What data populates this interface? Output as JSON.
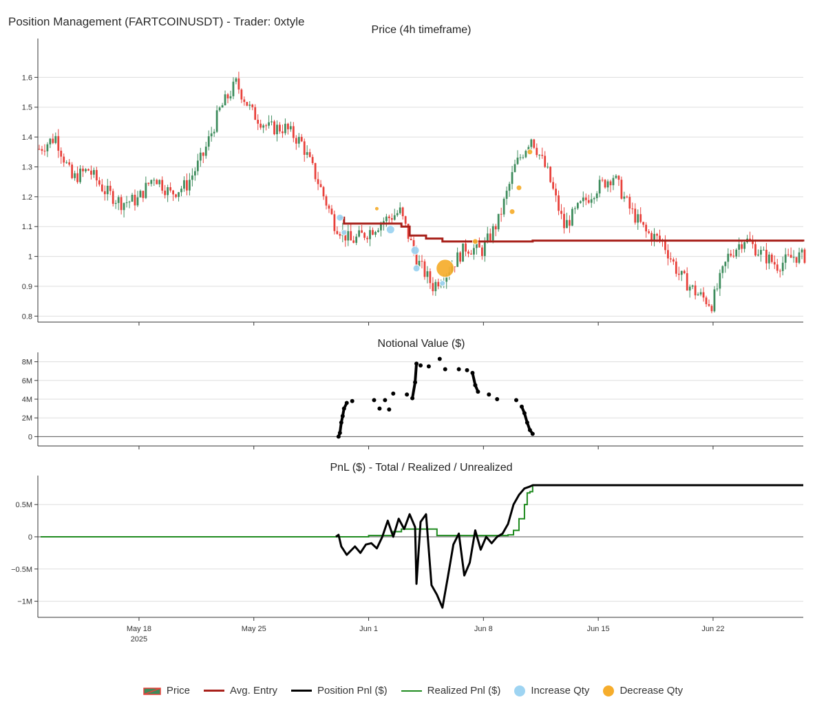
{
  "header": {
    "title": "Position Management (FARTCOINUSDT) - Trader: 0xtyle"
  },
  "colors": {
    "up_candle": "#3d8c5c",
    "down_candle": "#e8403a",
    "avg_entry": "#a8201a",
    "position_pnl": "#000000",
    "realized_pnl": "#1e8a1e",
    "increase_qty": "#9ed4f2",
    "decrease_qty": "#f6ad2c",
    "grid": "#dddddd",
    "axis": "#333333"
  },
  "chart_data": [
    {
      "type": "candlestick",
      "title": "Price (4h timeframe)",
      "ylim": [
        0.78,
        1.73
      ],
      "yticks": [
        0.8,
        0.9,
        1.0,
        1.1,
        1.2,
        1.3,
        1.4,
        1.5,
        1.6
      ],
      "ytick_labels": [
        "0.8",
        "0.9",
        "1",
        "1.1",
        "1.2",
        "1.3",
        "1.4",
        "1.5",
        "1.6"
      ],
      "x_range": [
        "2025-05-11 20:00",
        "2025-06-27 12:00"
      ],
      "price_path": [
        [
          "2025-05-12",
          1.36
        ],
        [
          "2025-05-13",
          1.4
        ],
        [
          "2025-05-14",
          1.26
        ],
        [
          "2025-05-15",
          1.29
        ],
        [
          "2025-05-16",
          1.22
        ],
        [
          "2025-05-17",
          1.18
        ],
        [
          "2025-05-18",
          1.19
        ],
        [
          "2025-05-19",
          1.27
        ],
        [
          "2025-05-20",
          1.21
        ],
        [
          "2025-05-21",
          1.24
        ],
        [
          "2025-05-22",
          1.34
        ],
        [
          "2025-05-23",
          1.49
        ],
        [
          "2025-05-24",
          1.58
        ],
        [
          "2025-05-25",
          1.48
        ],
        [
          "2025-05-26",
          1.43
        ],
        [
          "2025-05-27",
          1.43
        ],
        [
          "2025-05-28",
          1.38
        ],
        [
          "2025-05-29",
          1.25
        ],
        [
          "2025-05-30",
          1.11
        ],
        [
          "2025-05-31",
          1.05
        ],
        [
          "2025-06-01",
          1.08
        ],
        [
          "2025-06-02",
          1.12
        ],
        [
          "2025-06-03",
          1.15
        ],
        [
          "2025-06-04",
          0.99
        ],
        [
          "2025-06-05",
          0.9
        ],
        [
          "2025-06-06",
          0.96
        ],
        [
          "2025-06-07",
          1.03
        ],
        [
          "2025-06-08",
          1.02
        ],
        [
          "2025-06-09",
          1.12
        ],
        [
          "2025-06-10",
          1.3
        ],
        [
          "2025-06-11",
          1.4
        ],
        [
          "2025-06-12",
          1.28
        ],
        [
          "2025-06-13",
          1.1
        ],
        [
          "2025-06-14",
          1.17
        ],
        [
          "2025-06-15",
          1.23
        ],
        [
          "2025-06-16",
          1.27
        ],
        [
          "2025-06-17",
          1.16
        ],
        [
          "2025-06-18",
          1.08
        ],
        [
          "2025-06-19",
          1.05
        ],
        [
          "2025-06-20",
          0.94
        ],
        [
          "2025-06-21",
          0.88
        ],
        [
          "2025-06-22",
          0.84
        ],
        [
          "2025-06-23",
          1.0
        ],
        [
          "2025-06-24",
          1.06
        ],
        [
          "2025-06-25",
          1.01
        ],
        [
          "2025-06-26",
          0.97
        ],
        [
          "2025-06-27",
          1.0
        ]
      ],
      "avg_entry": [
        [
          "2025-05-30 06:00",
          1.13
        ],
        [
          "2025-05-30 12:00",
          1.11
        ],
        [
          "2025-06-03 00:00",
          1.1
        ],
        [
          "2025-06-03 12:00",
          1.07
        ],
        [
          "2025-06-04 12:00",
          1.06
        ],
        [
          "2025-06-05 12:00",
          1.05
        ],
        [
          "2025-06-11 00:00",
          1.053
        ],
        [
          "2025-06-27 12:00",
          1.05
        ]
      ],
      "increase_qty": [
        [
          "2025-05-30 06:00",
          1.13,
          4
        ],
        [
          "2025-05-30 12:00",
          1.08,
          3
        ],
        [
          "2025-06-02 08:00",
          1.09,
          5
        ],
        [
          "2025-06-03 20:00",
          1.02,
          5
        ],
        [
          "2025-06-03 22:00",
          0.96,
          4
        ],
        [
          "2025-06-05 12:00",
          0.91,
          3
        ]
      ],
      "decrease_qty": [
        [
          "2025-06-01 12:00",
          1.16,
          2
        ],
        [
          "2025-06-05 16:00",
          0.96,
          12
        ],
        [
          "2025-06-07 12:00",
          1.05,
          3
        ],
        [
          "2025-06-09 18:00",
          1.15,
          3
        ],
        [
          "2025-06-10 04:00",
          1.23,
          3
        ],
        [
          "2025-06-10 20:00",
          1.35,
          3
        ]
      ]
    },
    {
      "type": "scatter",
      "title": "Notional Value ($)",
      "ylim": [
        -1000000,
        9000000
      ],
      "yticks": [
        0,
        2000000,
        4000000,
        6000000,
        8000000
      ],
      "ytick_labels": [
        "0",
        "2M",
        "4M",
        "6M",
        "8M"
      ],
      "points": [
        [
          "2025-05-30 04:00",
          0
        ],
        [
          "2025-05-30 06:00",
          400000
        ],
        [
          "2025-05-30 08:00",
          1500000
        ],
        [
          "2025-05-30 10:00",
          2200000
        ],
        [
          "2025-05-30 12:00",
          3000000
        ],
        [
          "2025-05-30 16:00",
          3600000
        ],
        [
          "2025-05-31 00:00",
          3800000
        ],
        [
          "2025-06-01 08:00",
          3900000
        ],
        [
          "2025-06-01 16:00",
          3000000
        ],
        [
          "2025-06-02 00:00",
          3900000
        ],
        [
          "2025-06-02 06:00",
          2900000
        ],
        [
          "2025-06-02 12:00",
          4600000
        ],
        [
          "2025-06-03 08:00",
          4500000
        ],
        [
          "2025-06-03 16:00",
          4100000
        ],
        [
          "2025-06-03 20:00",
          5800000
        ],
        [
          "2025-06-03 22:00",
          7800000
        ],
        [
          "2025-06-04 04:00",
          7600000
        ],
        [
          "2025-06-04 16:00",
          7500000
        ],
        [
          "2025-06-05 08:00",
          8300000
        ],
        [
          "2025-06-05 16:00",
          7200000
        ],
        [
          "2025-06-06 12:00",
          7200000
        ],
        [
          "2025-06-07 00:00",
          7100000
        ],
        [
          "2025-06-07 08:00",
          6800000
        ],
        [
          "2025-06-07 12:00",
          5500000
        ],
        [
          "2025-06-07 16:00",
          4800000
        ],
        [
          "2025-06-08 08:00",
          4500000
        ],
        [
          "2025-06-08 20:00",
          4000000
        ],
        [
          "2025-06-10 00:00",
          3900000
        ],
        [
          "2025-06-10 08:00",
          3200000
        ],
        [
          "2025-06-10 12:00",
          2500000
        ],
        [
          "2025-06-10 16:00",
          1500000
        ],
        [
          "2025-06-10 20:00",
          700000
        ],
        [
          "2025-06-11 00:00",
          300000
        ]
      ]
    },
    {
      "type": "line",
      "title": "PnL ($) - Total / Realized / Unrealized",
      "ylim": [
        -1250000,
        950000
      ],
      "yticks": [
        -1000000,
        -500000,
        0,
        500000
      ],
      "ytick_labels": [
        "−1M",
        "−0.5M",
        "0",
        "0.5M"
      ],
      "series": [
        {
          "name": "Position Pnl ($)",
          "points": [
            [
              "2025-05-30 00:00",
              0
            ],
            [
              "2025-05-30 04:00",
              30000
            ],
            [
              "2025-05-30 08:00",
              -150000
            ],
            [
              "2025-05-30 16:00",
              -280000
            ],
            [
              "2025-05-31 04:00",
              -150000
            ],
            [
              "2025-05-31 12:00",
              -250000
            ],
            [
              "2025-05-31 20:00",
              -120000
            ],
            [
              "2025-06-01 04:00",
              -100000
            ],
            [
              "2025-06-01 12:00",
              -180000
            ],
            [
              "2025-06-01 20:00",
              0
            ],
            [
              "2025-06-02 04:00",
              250000
            ],
            [
              "2025-06-02 12:00",
              0
            ],
            [
              "2025-06-02 20:00",
              280000
            ],
            [
              "2025-06-03 04:00",
              120000
            ],
            [
              "2025-06-03 12:00",
              350000
            ],
            [
              "2025-06-03 20:00",
              150000
            ],
            [
              "2025-06-03 22:00",
              -730000
            ],
            [
              "2025-06-04 04:00",
              230000
            ],
            [
              "2025-06-04 12:00",
              350000
            ],
            [
              "2025-06-04 20:00",
              -750000
            ],
            [
              "2025-06-05 04:00",
              -900000
            ],
            [
              "2025-06-05 12:00",
              -1100000
            ],
            [
              "2025-06-05 20:00",
              -620000
            ],
            [
              "2025-06-06 04:00",
              -120000
            ],
            [
              "2025-06-06 12:00",
              50000
            ],
            [
              "2025-06-06 20:00",
              -600000
            ],
            [
              "2025-06-07 04:00",
              -400000
            ],
            [
              "2025-06-07 12:00",
              100000
            ],
            [
              "2025-06-07 20:00",
              -200000
            ],
            [
              "2025-06-08 04:00",
              0
            ],
            [
              "2025-06-08 12:00",
              -100000
            ],
            [
              "2025-06-08 20:00",
              0
            ],
            [
              "2025-06-09 04:00",
              50000
            ],
            [
              "2025-06-09 12:00",
              200000
            ],
            [
              "2025-06-09 20:00",
              500000
            ],
            [
              "2025-06-10 04:00",
              650000
            ],
            [
              "2025-06-10 12:00",
              750000
            ],
            [
              "2025-06-10 20:00",
              780000
            ],
            [
              "2025-06-11 00:00",
              800000
            ],
            [
              "2025-06-27 12:00",
              800000
            ]
          ]
        },
        {
          "name": "Realized Pnl ($)",
          "points": [
            [
              "2025-05-12 00:00",
              0
            ],
            [
              "2025-05-30 00:00",
              0
            ],
            [
              "2025-06-01 00:00",
              20000
            ],
            [
              "2025-06-02 12:00",
              80000
            ],
            [
              "2025-06-03 00:00",
              120000
            ],
            [
              "2025-06-04 20:00",
              120000
            ],
            [
              "2025-06-05 04:00",
              20000
            ],
            [
              "2025-06-09 12:00",
              30000
            ],
            [
              "2025-06-09 20:00",
              100000
            ],
            [
              "2025-06-10 04:00",
              280000
            ],
            [
              "2025-06-10 12:00",
              500000
            ],
            [
              "2025-06-10 16:00",
              680000
            ],
            [
              "2025-06-10 20:00",
              700000
            ],
            [
              "2025-06-11 00:00",
              800000
            ],
            [
              "2025-06-27 12:00",
              800000
            ]
          ]
        }
      ]
    }
  ],
  "x_axis": {
    "ticks": [
      {
        "date": "2025-05-18",
        "label": "May 18",
        "sublabel": "2025"
      },
      {
        "date": "2025-05-25",
        "label": "May 25",
        "sublabel": ""
      },
      {
        "date": "2025-06-01",
        "label": "Jun 1",
        "sublabel": ""
      },
      {
        "date": "2025-06-08",
        "label": "Jun 8",
        "sublabel": ""
      },
      {
        "date": "2025-06-15",
        "label": "Jun 15",
        "sublabel": ""
      },
      {
        "date": "2025-06-22",
        "label": "Jun 22",
        "sublabel": ""
      }
    ]
  },
  "legend": {
    "price": "Price",
    "avg_entry": "Avg. Entry",
    "position_pnl": "Position Pnl ($)",
    "realized_pnl": "Realized Pnl ($)",
    "increase_qty": "Increase Qty",
    "decrease_qty": "Decrease Qty"
  }
}
